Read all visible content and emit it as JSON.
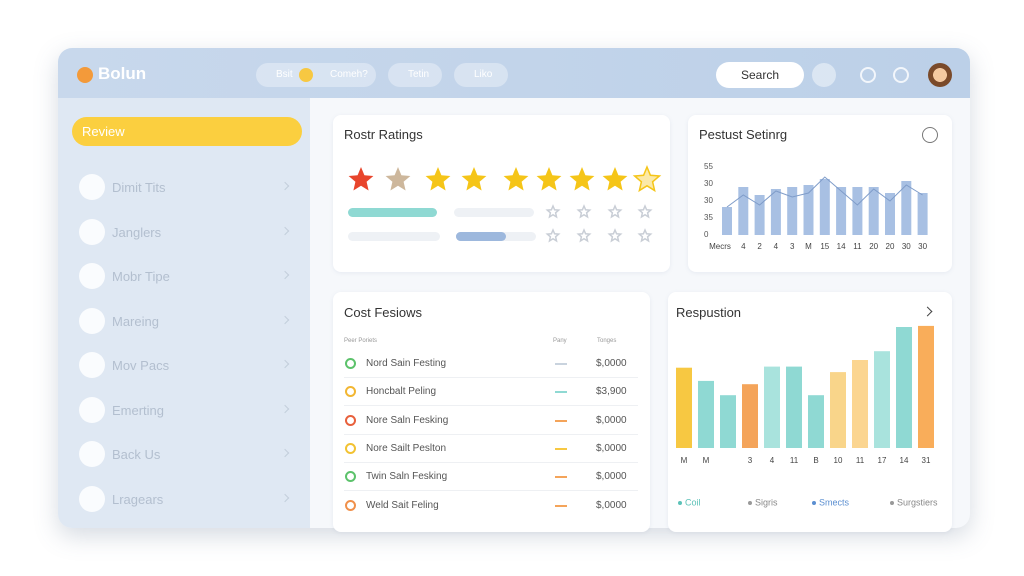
{
  "header": {
    "brand": "Bolun",
    "tabs": [
      "Bsit",
      "Comeh?",
      "Tetin",
      "Liko"
    ],
    "search": "Search"
  },
  "sidebar": {
    "active": "Review",
    "items": [
      "Dimit Tits",
      "Janglers",
      "Mobr Tipe",
      "Mareing",
      "Mov Pacs",
      "Emerting",
      "Back Us",
      "Lragears"
    ]
  },
  "ratings": {
    "title": "Rostr Ratings",
    "star_colors": [
      "#e8452c",
      "#cdb79c",
      "#f5c518",
      "#f5c518",
      "#f5c518",
      "#f5c518",
      "#f5c518",
      "#f5c518",
      "#fbe9a8"
    ]
  },
  "product": {
    "title": "Pestust Setinrg",
    "y_labels": [
      "55",
      "30",
      "30",
      "35",
      "0"
    ],
    "chart_data": {
      "type": "bar",
      "categories": [
        "Mecrs",
        "4",
        "2",
        "4",
        "3",
        "M",
        "15",
        "14",
        "11",
        "20",
        "20",
        "30",
        "30"
      ],
      "values": [
        28,
        48,
        40,
        46,
        48,
        50,
        56,
        48,
        48,
        48,
        42,
        54,
        42
      ],
      "line": [
        28,
        40,
        30,
        44,
        38,
        42,
        58,
        44,
        30,
        46,
        34,
        50,
        40
      ],
      "color": "#a8c0e3",
      "line_color": "#7f9cc9",
      "ylim": [
        0,
        70
      ]
    }
  },
  "costs": {
    "title": "Cost Fesiows",
    "columns": [
      "Peer Poriets",
      "Pany",
      "Tonges"
    ],
    "rows": [
      {
        "name": "Nord Sain Festing",
        "amount": "$,0000",
        "icon_color": "#5cc26b",
        "dash_color": "#c9d3de"
      },
      {
        "name": "Honcbalt Peling",
        "amount": "$3,900",
        "icon_color": "#f2b632",
        "dash_color": "#8fd9d3"
      },
      {
        "name": "Nore Saln Fesking",
        "amount": "$,0000",
        "icon_color": "#e8603c",
        "dash_color": "#f4a45a"
      },
      {
        "name": "Nore Sailt Peslton",
        "amount": "$,0000",
        "icon_color": "#f2c232",
        "dash_color": "#f7c842"
      },
      {
        "name": "Twin Saln Fesking",
        "amount": "$,0000",
        "icon_color": "#5cc26b",
        "dash_color": "#f4a45a"
      },
      {
        "name": "Weld Sait Feling",
        "amount": "$,0000",
        "icon_color": "#f0904a",
        "dash_color": "#f4a45a"
      }
    ]
  },
  "response": {
    "title": "Respustion",
    "chart_data": {
      "type": "bar",
      "categories": [
        "M",
        "M",
        null,
        "3",
        "4",
        "11",
        "B",
        "10",
        "11",
        "17",
        "14",
        "31"
      ],
      "values": [
        73,
        61,
        48,
        58,
        74,
        74,
        48,
        69,
        80,
        88,
        110,
        111
      ],
      "colors": [
        "#f7c842",
        "#8fd9d3",
        "#8fd9d3",
        "#f4a45a",
        "#a9e3dd",
        "#8fd9d3",
        "#8fd9d3",
        "#f9d58a",
        "#fbd590",
        "#a9e3dd",
        "#8fd9d3",
        "#f9ad5a"
      ],
      "ylim": [
        0,
        120
      ]
    },
    "legend": [
      "Coil",
      "Sigris",
      "Smects",
      "Surgstiers"
    ]
  }
}
